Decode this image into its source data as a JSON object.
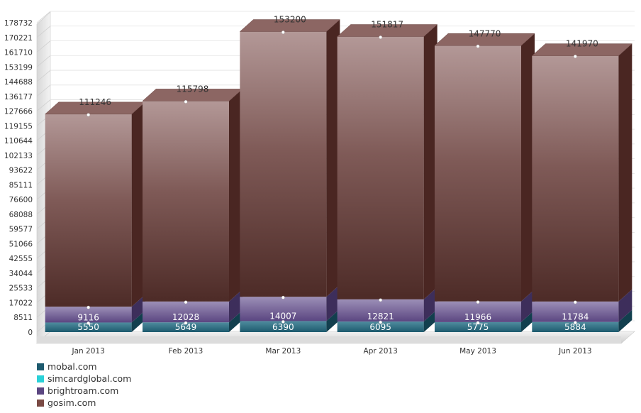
{
  "chart_data": {
    "type": "bar",
    "stacked": true,
    "three_d": true,
    "categories": [
      "Jan 2013",
      "Feb 2013",
      "Mar 2013",
      "Apr 2013",
      "May 2013",
      "Jun 2013"
    ],
    "series": [
      {
        "name": "mobal.com",
        "color": "#1d5a6e",
        "values": [
          5550,
          5649,
          6390,
          6095,
          5775,
          5884
        ]
      },
      {
        "name": "simcardglobal.com",
        "color": "#2ad1d8",
        "values": [
          0,
          0,
          0,
          0,
          0,
          0
        ]
      },
      {
        "name": "brightroam.com",
        "color": "#5b4681",
        "values": [
          9116,
          12028,
          14007,
          12821,
          11966,
          11784
        ]
      },
      {
        "name": "gosim.com",
        "color": "#7a4a44",
        "values": [
          111246,
          115798,
          153200,
          151817,
          147770,
          141970
        ]
      }
    ],
    "ylim": [
      0,
      178732
    ],
    "yticks": [
      "0",
      "8511",
      "17022",
      "25533",
      "34044",
      "42555",
      "51066",
      "59577",
      "68088",
      "76600",
      "85111",
      "93622",
      "102133",
      "110644",
      "119155",
      "127666",
      "136177",
      "144688",
      "153199",
      "161710",
      "170221",
      "178732"
    ],
    "grid": true,
    "legend_position": "bottom-left"
  }
}
